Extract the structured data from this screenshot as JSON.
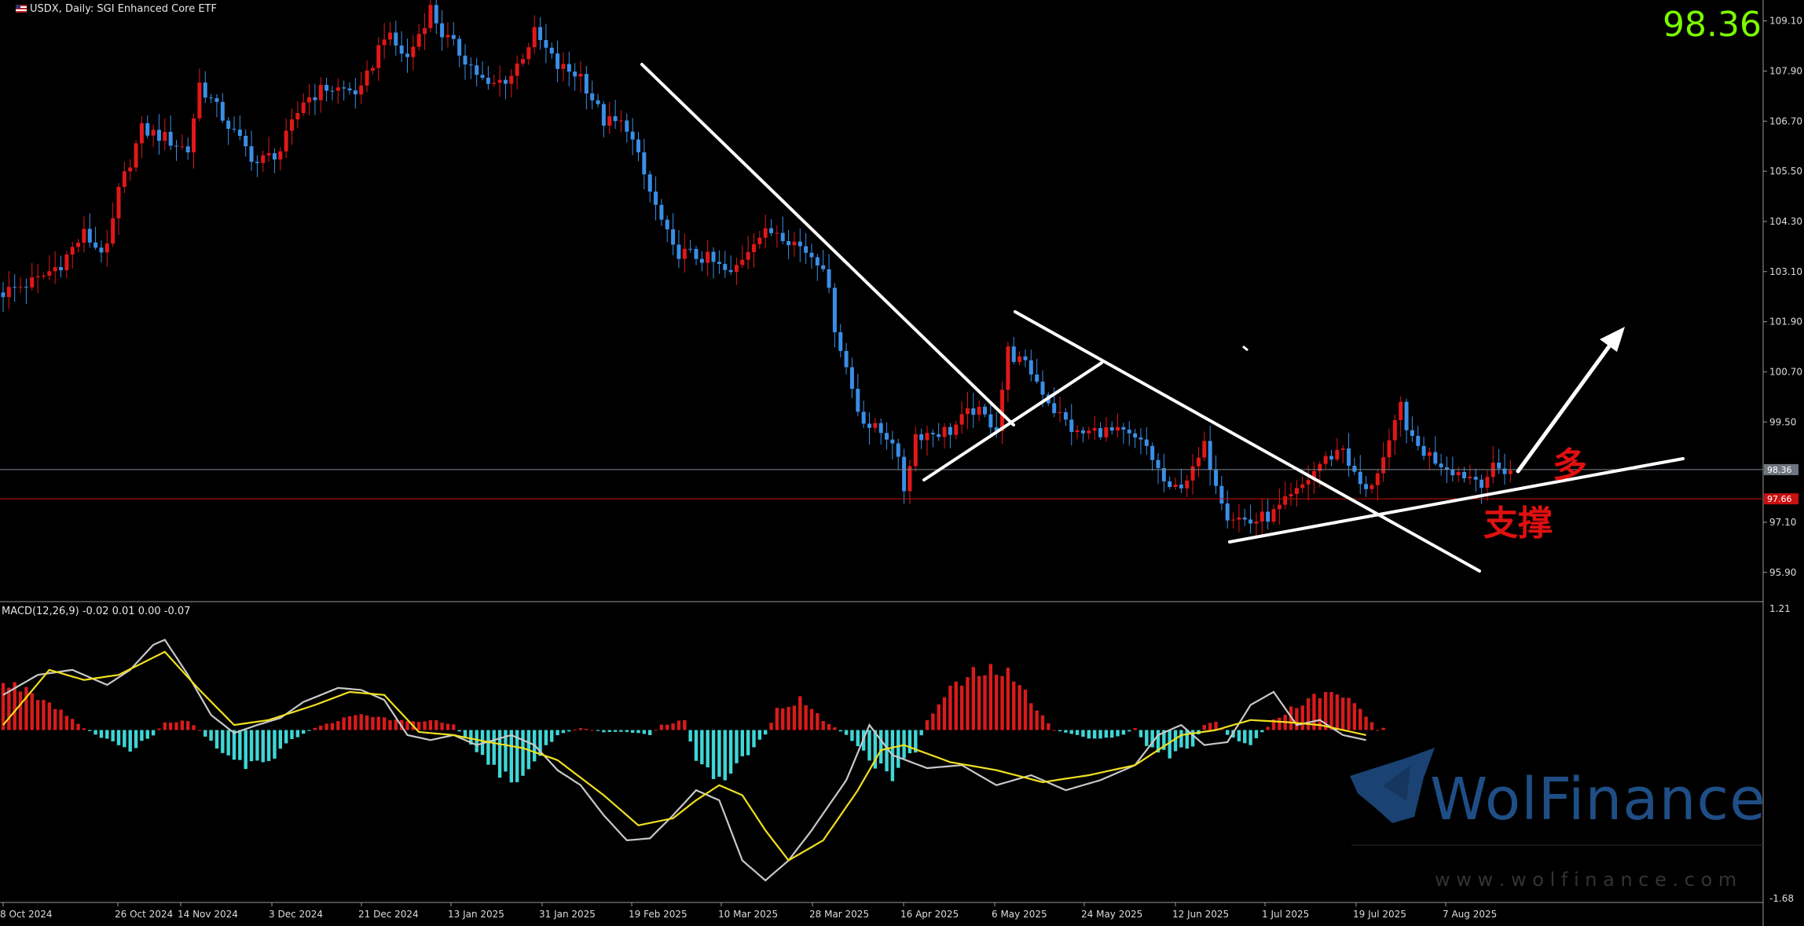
{
  "header": {
    "symbol_label": "USDX, Daily:  SGI Enhanced Core ETF",
    "big_price": "98.36"
  },
  "annotations": {
    "long_label": "多",
    "support_label": "支撑"
  },
  "watermark": {
    "brand": "WolFinance",
    "url": "w w w . w o l f i n a n c e . c o m"
  },
  "colors": {
    "bull": "#e01818",
    "bear": "#3a8ee6",
    "hist_pos": "#d81b1b",
    "hist_neg": "#3fd6d6",
    "macd_line": "#c8c8c8",
    "signal_line": "#f0e020",
    "price_line": "#7f8a96",
    "support_line": "#c81010",
    "trendline": "#ffffff",
    "big_price": "#7CFC00"
  },
  "chart_data": [
    {
      "type": "candlestick",
      "title": "USDX, Daily:  SGI Enhanced Core ETF",
      "ylim": [
        95.2,
        109.6
      ],
      "y_ticks": [
        "109.10",
        "107.90",
        "106.70",
        "105.50",
        "104.30",
        "103.10",
        "101.90",
        "100.70",
        "99.50",
        "98.30",
        "97.10",
        "95.90"
      ],
      "x_labels": [
        "8 Oct 2024",
        "26 Oct 2024",
        "14 Nov 2024",
        "3 Dec 2024",
        "21 Dec 2024",
        "13 Jan 2025",
        "31 Jan 2025",
        "19 Feb 2025",
        "10 Mar 2025",
        "28 Mar 2025",
        "16 Apr 2025",
        "6 May 2025",
        "24 May 2025",
        "12 Jun 2025",
        "1 Jul 2025",
        "19 Jul 2025",
        "7 Aug 2025"
      ],
      "current_price": "98.36",
      "support_price": "97.66",
      "close_path": [
        [
          0,
          102.6
        ],
        [
          6,
          102.9
        ],
        [
          10,
          103.3
        ],
        [
          14,
          104.0
        ],
        [
          16,
          103.7
        ],
        [
          18,
          103.6
        ],
        [
          20,
          105.0
        ],
        [
          24,
          106.5
        ],
        [
          28,
          106.3
        ],
        [
          32,
          106.0
        ],
        [
          34,
          107.6
        ],
        [
          40,
          106.4
        ],
        [
          44,
          105.7
        ],
        [
          48,
          106.0
        ],
        [
          52,
          107.2
        ],
        [
          56,
          107.5
        ],
        [
          62,
          107.4
        ],
        [
          66,
          108.8
        ],
        [
          70,
          108.2
        ],
        [
          74,
          109.4
        ],
        [
          76,
          108.8
        ],
        [
          80,
          108.2
        ],
        [
          84,
          107.5
        ],
        [
          88,
          107.8
        ],
        [
          92,
          108.8
        ],
        [
          96,
          108.0
        ],
        [
          100,
          107.8
        ],
        [
          104,
          106.7
        ],
        [
          108,
          106.6
        ],
        [
          112,
          105.0
        ],
        [
          116,
          103.6
        ],
        [
          122,
          103.4
        ],
        [
          126,
          103.0
        ],
        [
          130,
          103.9
        ],
        [
          134,
          104.1
        ],
        [
          138,
          103.7
        ],
        [
          142,
          103.3
        ],
        [
          144,
          101.8
        ],
        [
          148,
          99.8
        ],
        [
          150,
          99.4
        ],
        [
          154,
          99.1
        ],
        [
          156,
          97.9
        ],
        [
          158,
          99.2
        ],
        [
          164,
          99.3
        ],
        [
          168,
          99.8
        ],
        [
          172,
          99.4
        ],
        [
          174,
          101.2
        ],
        [
          178,
          100.7
        ],
        [
          182,
          99.8
        ],
        [
          186,
          99.2
        ],
        [
          190,
          99.3
        ],
        [
          194,
          99.2
        ],
        [
          198,
          98.9
        ],
        [
          202,
          97.8
        ],
        [
          206,
          98.3
        ],
        [
          208,
          98.9
        ],
        [
          210,
          98.1
        ],
        [
          212,
          97.3
        ],
        [
          216,
          97.1
        ],
        [
          220,
          97.3
        ],
        [
          224,
          97.8
        ],
        [
          228,
          98.5
        ],
        [
          232,
          98.9
        ],
        [
          234,
          98.2
        ],
        [
          236,
          97.8
        ],
        [
          240,
          98.9
        ],
        [
          242,
          99.9
        ],
        [
          244,
          99.0
        ],
        [
          248,
          98.6
        ],
        [
          252,
          98.3
        ],
        [
          256,
          98.1
        ],
        [
          258,
          98.36
        ]
      ]
    },
    {
      "type": "bar",
      "title": "MACD(12,26,9) -0.02 0.01 0.00 -0.07",
      "ylim": [
        -1.68,
        1.21
      ],
      "y_ticks": [
        "1.21",
        "-1.68"
      ],
      "histogram_path": [
        [
          0,
          0.45
        ],
        [
          4,
          0.42
        ],
        [
          10,
          0.2
        ],
        [
          14,
          0.02
        ],
        [
          18,
          -0.1
        ],
        [
          22,
          -0.2
        ],
        [
          26,
          -0.05
        ],
        [
          28,
          0.08
        ],
        [
          32,
          0.1
        ],
        [
          34,
          0.0
        ],
        [
          38,
          -0.25
        ],
        [
          42,
          -0.35
        ],
        [
          46,
          -0.3
        ],
        [
          50,
          -0.1
        ],
        [
          54,
          0.02
        ],
        [
          58,
          0.1
        ],
        [
          62,
          0.15
        ],
        [
          66,
          0.12
        ],
        [
          70,
          0.08
        ],
        [
          74,
          0.1
        ],
        [
          78,
          0.05
        ],
        [
          82,
          -0.2
        ],
        [
          86,
          -0.45
        ],
        [
          88,
          -0.52
        ],
        [
          92,
          -0.3
        ],
        [
          96,
          -0.05
        ],
        [
          100,
          0.02
        ],
        [
          104,
          -0.02
        ],
        [
          108,
          -0.02
        ],
        [
          112,
          -0.05
        ],
        [
          114,
          0.05
        ],
        [
          118,
          0.1
        ],
        [
          120,
          -0.35
        ],
        [
          124,
          -0.52
        ],
        [
          128,
          -0.3
        ],
        [
          132,
          -0.05
        ],
        [
          134,
          0.2
        ],
        [
          138,
          0.3
        ],
        [
          142,
          0.1
        ],
        [
          146,
          -0.05
        ],
        [
          150,
          -0.3
        ],
        [
          154,
          -0.45
        ],
        [
          158,
          -0.2
        ],
        [
          160,
          0.1
        ],
        [
          164,
          0.4
        ],
        [
          168,
          0.55
        ],
        [
          172,
          0.6
        ],
        [
          174,
          0.55
        ],
        [
          178,
          0.3
        ],
        [
          182,
          0.0
        ],
        [
          186,
          -0.05
        ],
        [
          190,
          -0.1
        ],
        [
          194,
          -0.05
        ],
        [
          196,
          0.02
        ],
        [
          198,
          -0.15
        ],
        [
          202,
          -0.25
        ],
        [
          206,
          -0.15
        ],
        [
          208,
          0.05
        ],
        [
          210,
          0.08
        ],
        [
          212,
          -0.05
        ],
        [
          216,
          -0.15
        ],
        [
          220,
          0.1
        ],
        [
          224,
          0.25
        ],
        [
          228,
          0.35
        ],
        [
          232,
          0.35
        ],
        [
          236,
          0.15
        ],
        [
          238,
          0.0
        ],
        [
          240,
          0.05
        ],
        [
          242,
          0.35
        ],
        [
          244,
          0.25
        ],
        [
          248,
          -0.05
        ],
        [
          252,
          -0.2
        ],
        [
          256,
          -0.12
        ],
        [
          258,
          -0.07
        ]
      ],
      "macd_path": [
        [
          0,
          0.35
        ],
        [
          6,
          0.55
        ],
        [
          12,
          0.6
        ],
        [
          18,
          0.45
        ],
        [
          22,
          0.6
        ],
        [
          26,
          0.85
        ],
        [
          28,
          0.9
        ],
        [
          32,
          0.55
        ],
        [
          36,
          0.15
        ],
        [
          40,
          -0.03
        ],
        [
          44,
          0.05
        ],
        [
          48,
          0.12
        ],
        [
          52,
          0.28
        ],
        [
          58,
          0.42
        ],
        [
          62,
          0.4
        ],
        [
          66,
          0.3
        ],
        [
          70,
          -0.05
        ],
        [
          74,
          -0.1
        ],
        [
          78,
          -0.05
        ],
        [
          82,
          -0.15
        ],
        [
          88,
          -0.05
        ],
        [
          92,
          -0.15
        ],
        [
          96,
          -0.4
        ],
        [
          100,
          -0.55
        ],
        [
          104,
          -0.85
        ],
        [
          108,
          -1.1
        ],
        [
          112,
          -1.08
        ],
        [
          116,
          -0.85
        ],
        [
          120,
          -0.6
        ],
        [
          124,
          -0.7
        ],
        [
          128,
          -1.3
        ],
        [
          132,
          -1.5
        ],
        [
          136,
          -1.3
        ],
        [
          140,
          -1.0
        ],
        [
          146,
          -0.5
        ],
        [
          150,
          0.05
        ],
        [
          154,
          -0.25
        ],
        [
          160,
          -0.38
        ],
        [
          166,
          -0.35
        ],
        [
          172,
          -0.55
        ],
        [
          178,
          -0.45
        ],
        [
          184,
          -0.6
        ],
        [
          190,
          -0.5
        ],
        [
          196,
          -0.35
        ],
        [
          200,
          -0.05
        ],
        [
          204,
          0.05
        ],
        [
          208,
          -0.15
        ],
        [
          212,
          -0.12
        ],
        [
          216,
          0.25
        ],
        [
          220,
          0.38
        ],
        [
          224,
          0.05
        ],
        [
          228,
          0.1
        ],
        [
          232,
          -0.05
        ],
        [
          236,
          -0.1
        ]
      ],
      "signal_path": [
        [
          0,
          0.05
        ],
        [
          8,
          0.6
        ],
        [
          14,
          0.5
        ],
        [
          20,
          0.55
        ],
        [
          28,
          0.78
        ],
        [
          34,
          0.4
        ],
        [
          40,
          0.05
        ],
        [
          46,
          0.1
        ],
        [
          54,
          0.25
        ],
        [
          60,
          0.38
        ],
        [
          66,
          0.35
        ],
        [
          72,
          -0.02
        ],
        [
          78,
          -0.05
        ],
        [
          84,
          -0.12
        ],
        [
          90,
          -0.18
        ],
        [
          96,
          -0.3
        ],
        [
          104,
          -0.65
        ],
        [
          110,
          -0.95
        ],
        [
          116,
          -0.88
        ],
        [
          120,
          -0.7
        ],
        [
          124,
          -0.55
        ],
        [
          128,
          -0.65
        ],
        [
          132,
          -1.0
        ],
        [
          136,
          -1.3
        ],
        [
          142,
          -1.1
        ],
        [
          148,
          -0.6
        ],
        [
          152,
          -0.2
        ],
        [
          156,
          -0.15
        ],
        [
          164,
          -0.32
        ],
        [
          172,
          -0.4
        ],
        [
          180,
          -0.52
        ],
        [
          188,
          -0.45
        ],
        [
          196,
          -0.35
        ],
        [
          204,
          -0.05
        ],
        [
          210,
          0.0
        ],
        [
          216,
          0.1
        ],
        [
          222,
          0.08
        ],
        [
          228,
          0.05
        ],
        [
          232,
          0.0
        ],
        [
          236,
          -0.05
        ]
      ]
    }
  ]
}
